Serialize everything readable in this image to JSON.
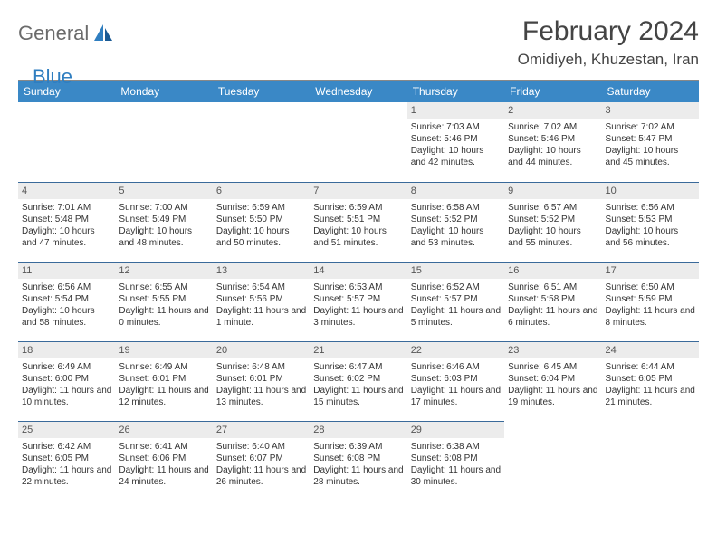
{
  "brand": {
    "part1": "General",
    "part2": "Blue"
  },
  "title": "February 2024",
  "location": "Omidiyeh, Khuzestan, Iran",
  "colors": {
    "header_bg": "#3a88c6",
    "header_text": "#ffffff",
    "daynum_bg": "#ececec",
    "daynum_border": "#3a6a9a",
    "brand_gray": "#6b6b6b",
    "brand_blue": "#2f7ec0"
  },
  "daysOfWeek": [
    "Sunday",
    "Monday",
    "Tuesday",
    "Wednesday",
    "Thursday",
    "Friday",
    "Saturday"
  ],
  "layout": {
    "first_day_column": 4,
    "days_in_month": 29
  },
  "cells": [
    {
      "d": 1,
      "sr": "7:03 AM",
      "ss": "5:46 PM",
      "dl": "10 hours and 42 minutes."
    },
    {
      "d": 2,
      "sr": "7:02 AM",
      "ss": "5:46 PM",
      "dl": "10 hours and 44 minutes."
    },
    {
      "d": 3,
      "sr": "7:02 AM",
      "ss": "5:47 PM",
      "dl": "10 hours and 45 minutes."
    },
    {
      "d": 4,
      "sr": "7:01 AM",
      "ss": "5:48 PM",
      "dl": "10 hours and 47 minutes."
    },
    {
      "d": 5,
      "sr": "7:00 AM",
      "ss": "5:49 PM",
      "dl": "10 hours and 48 minutes."
    },
    {
      "d": 6,
      "sr": "6:59 AM",
      "ss": "5:50 PM",
      "dl": "10 hours and 50 minutes."
    },
    {
      "d": 7,
      "sr": "6:59 AM",
      "ss": "5:51 PM",
      "dl": "10 hours and 51 minutes."
    },
    {
      "d": 8,
      "sr": "6:58 AM",
      "ss": "5:52 PM",
      "dl": "10 hours and 53 minutes."
    },
    {
      "d": 9,
      "sr": "6:57 AM",
      "ss": "5:52 PM",
      "dl": "10 hours and 55 minutes."
    },
    {
      "d": 10,
      "sr": "6:56 AM",
      "ss": "5:53 PM",
      "dl": "10 hours and 56 minutes."
    },
    {
      "d": 11,
      "sr": "6:56 AM",
      "ss": "5:54 PM",
      "dl": "10 hours and 58 minutes."
    },
    {
      "d": 12,
      "sr": "6:55 AM",
      "ss": "5:55 PM",
      "dl": "11 hours and 0 minutes."
    },
    {
      "d": 13,
      "sr": "6:54 AM",
      "ss": "5:56 PM",
      "dl": "11 hours and 1 minute."
    },
    {
      "d": 14,
      "sr": "6:53 AM",
      "ss": "5:57 PM",
      "dl": "11 hours and 3 minutes."
    },
    {
      "d": 15,
      "sr": "6:52 AM",
      "ss": "5:57 PM",
      "dl": "11 hours and 5 minutes."
    },
    {
      "d": 16,
      "sr": "6:51 AM",
      "ss": "5:58 PM",
      "dl": "11 hours and 6 minutes."
    },
    {
      "d": 17,
      "sr": "6:50 AM",
      "ss": "5:59 PM",
      "dl": "11 hours and 8 minutes."
    },
    {
      "d": 18,
      "sr": "6:49 AM",
      "ss": "6:00 PM",
      "dl": "11 hours and 10 minutes."
    },
    {
      "d": 19,
      "sr": "6:49 AM",
      "ss": "6:01 PM",
      "dl": "11 hours and 12 minutes."
    },
    {
      "d": 20,
      "sr": "6:48 AM",
      "ss": "6:01 PM",
      "dl": "11 hours and 13 minutes."
    },
    {
      "d": 21,
      "sr": "6:47 AM",
      "ss": "6:02 PM",
      "dl": "11 hours and 15 minutes."
    },
    {
      "d": 22,
      "sr": "6:46 AM",
      "ss": "6:03 PM",
      "dl": "11 hours and 17 minutes."
    },
    {
      "d": 23,
      "sr": "6:45 AM",
      "ss": "6:04 PM",
      "dl": "11 hours and 19 minutes."
    },
    {
      "d": 24,
      "sr": "6:44 AM",
      "ss": "6:05 PM",
      "dl": "11 hours and 21 minutes."
    },
    {
      "d": 25,
      "sr": "6:42 AM",
      "ss": "6:05 PM",
      "dl": "11 hours and 22 minutes."
    },
    {
      "d": 26,
      "sr": "6:41 AM",
      "ss": "6:06 PM",
      "dl": "11 hours and 24 minutes."
    },
    {
      "d": 27,
      "sr": "6:40 AM",
      "ss": "6:07 PM",
      "dl": "11 hours and 26 minutes."
    },
    {
      "d": 28,
      "sr": "6:39 AM",
      "ss": "6:08 PM",
      "dl": "11 hours and 28 minutes."
    },
    {
      "d": 29,
      "sr": "6:38 AM",
      "ss": "6:08 PM",
      "dl": "11 hours and 30 minutes."
    }
  ],
  "labels": {
    "sunrise": "Sunrise:",
    "sunset": "Sunset:",
    "daylight": "Daylight:"
  }
}
